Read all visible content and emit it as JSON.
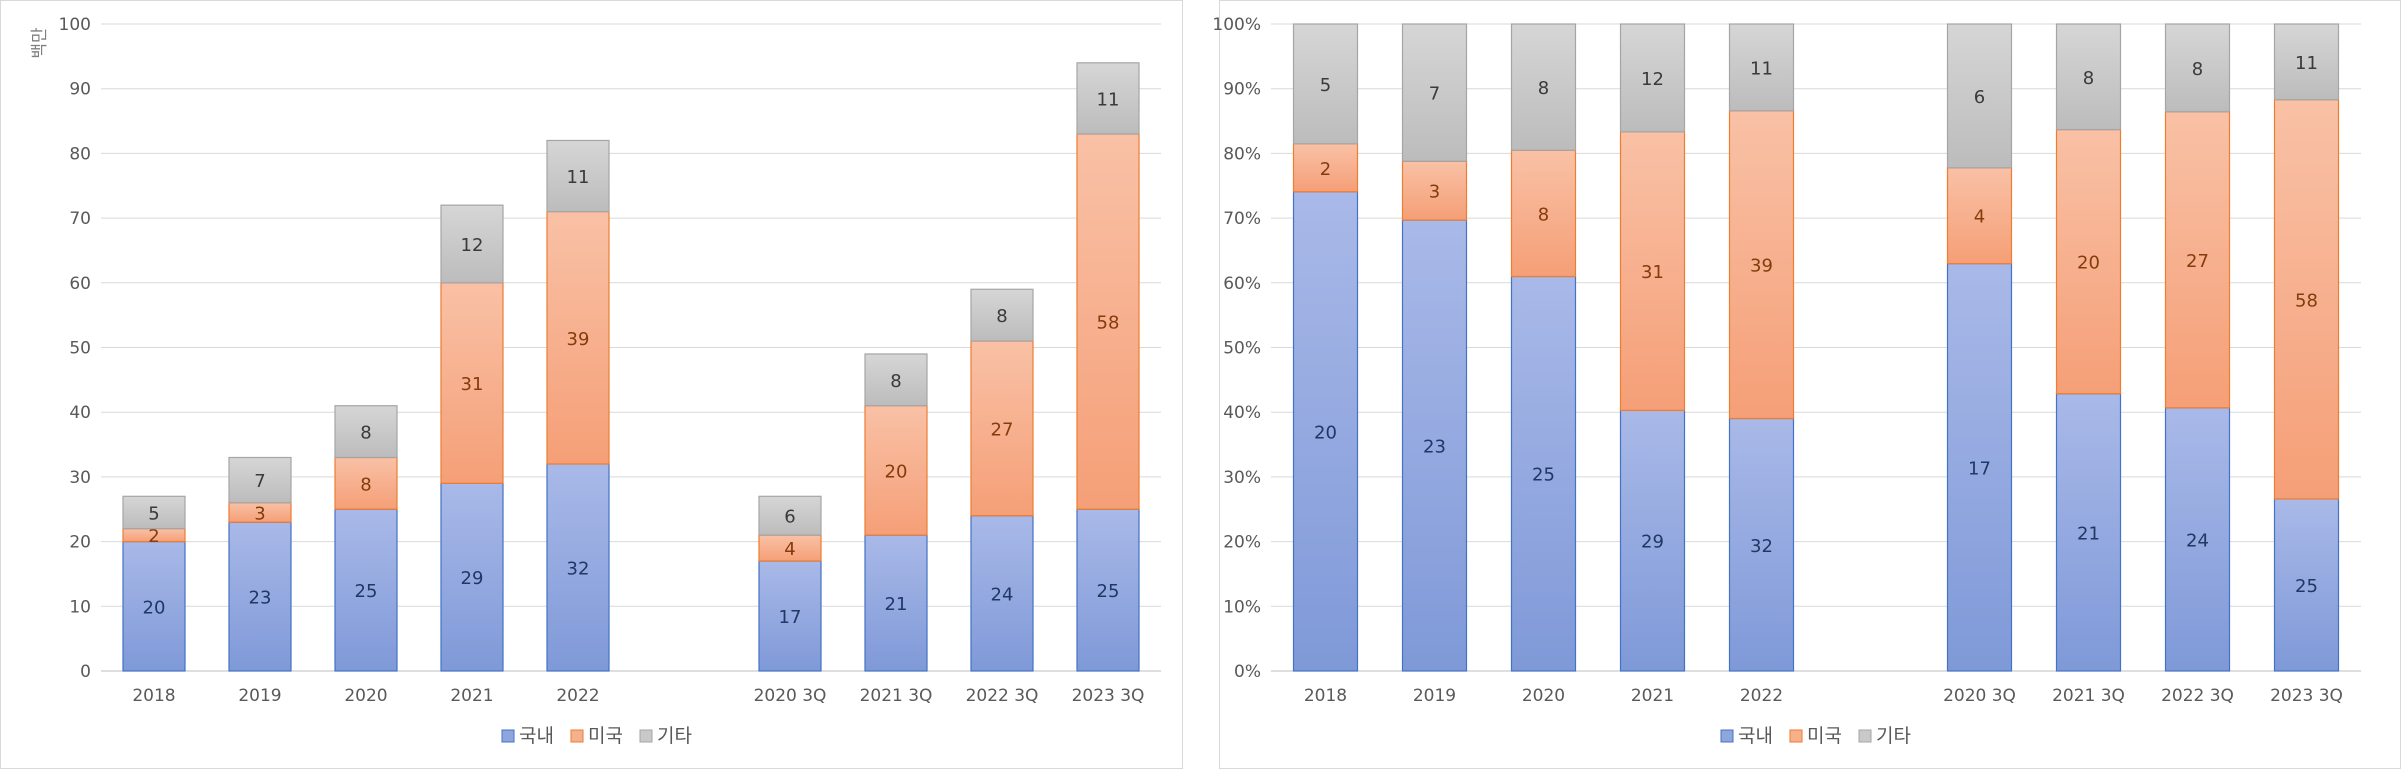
{
  "colors": {
    "domestic": "#8fa5dd",
    "domestic_stroke": "#4472c4",
    "us": "#f7b08e",
    "us_stroke": "#ed7d31",
    "other": "#c9c9c9",
    "other_stroke": "#a5a5a5",
    "label_domestic": "#1f3864",
    "label_us": "#843c0c",
    "label_other": "#3a3a3a"
  },
  "chart_data": [
    {
      "type": "bar",
      "stacked": true,
      "categories": [
        "2018",
        "2019",
        "2020",
        "2021",
        "2022",
        "",
        "2020 3Q",
        "2021 3Q",
        "2022 3Q",
        "2023 3Q"
      ],
      "series": [
        {
          "name": "국내",
          "values": [
            20,
            23,
            25,
            29,
            32,
            null,
            17,
            21,
            24,
            25
          ]
        },
        {
          "name": "미국",
          "values": [
            2,
            3,
            8,
            31,
            39,
            null,
            4,
            20,
            27,
            58
          ]
        },
        {
          "name": "기타",
          "values": [
            5,
            7,
            8,
            12,
            11,
            null,
            6,
            8,
            8,
            11
          ]
        }
      ],
      "ylabel": "백만",
      "ylim": [
        0,
        100
      ],
      "yticks": [
        "0",
        "10",
        "20",
        "30",
        "40",
        "50",
        "60",
        "70",
        "80",
        "90",
        "100"
      ],
      "grid": true,
      "legend": "bottom"
    },
    {
      "type": "bar",
      "stacked": true,
      "percent": true,
      "categories": [
        "2018",
        "2019",
        "2020",
        "2021",
        "2022",
        "",
        "2020 3Q",
        "2021 3Q",
        "2022 3Q",
        "2023 3Q"
      ],
      "series": [
        {
          "name": "국내",
          "values": [
            20,
            23,
            25,
            29,
            32,
            null,
            17,
            21,
            24,
            25
          ]
        },
        {
          "name": "미국",
          "values": [
            2,
            3,
            8,
            31,
            39,
            null,
            4,
            20,
            27,
            58
          ]
        },
        {
          "name": "기타",
          "values": [
            5,
            7,
            8,
            12,
            11,
            null,
            6,
            8,
            8,
            11
          ]
        }
      ],
      "ylim": [
        0,
        100
      ],
      "yticks": [
        "0%",
        "10%",
        "20%",
        "30%",
        "40%",
        "50%",
        "60%",
        "70%",
        "80%",
        "90%",
        "100%"
      ],
      "grid": true,
      "legend": "bottom"
    }
  ]
}
